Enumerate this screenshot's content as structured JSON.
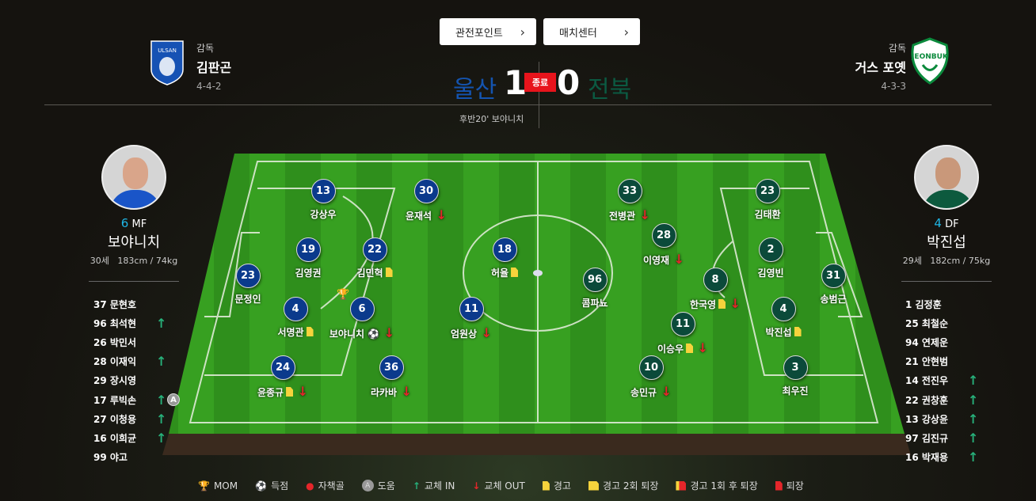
{
  "buttons": {
    "viewing_points": "관전포인트",
    "match_center": "매치센터"
  },
  "home": {
    "name": "울산",
    "score": "1",
    "coach_label": "감독",
    "coach": "김판곤",
    "formation": "4-4-2",
    "color": "#0b3a8c",
    "logo_text": "HD ULSAN"
  },
  "away": {
    "name": "전북",
    "score": "0",
    "coach_label": "감독",
    "coach": "거스 포옛",
    "formation": "4-3-3",
    "color": "#0b4a3a",
    "logo_text": "JEONBUK"
  },
  "match": {
    "status": "종료",
    "event": "후반20' 보야니치"
  },
  "home_profile": {
    "number": "6",
    "position": "MF",
    "name": "보야니치",
    "age": "30세",
    "body": "183cm / 74kg"
  },
  "away_profile": {
    "number": "4",
    "position": "DF",
    "name": "박진섭",
    "age": "29세",
    "body": "182cm / 75kg"
  },
  "home_bench": [
    {
      "label": "37 문현호",
      "in": false
    },
    {
      "label": "96 최석현",
      "in": true
    },
    {
      "label": "26 박민서",
      "in": false
    },
    {
      "label": "28 이재익",
      "in": true
    },
    {
      "label": "29 장시영",
      "in": false
    },
    {
      "label": "17 루빅손",
      "in": true,
      "assist": true
    },
    {
      "label": "27 이청용",
      "in": true
    },
    {
      "label": "16 이희균",
      "in": true
    },
    {
      "label": "99 야고",
      "in": false
    }
  ],
  "away_bench": [
    {
      "label": "1  김정훈",
      "in": false
    },
    {
      "label": "25 최철순",
      "in": false
    },
    {
      "label": "94 연제운",
      "in": false
    },
    {
      "label": "21 안현범",
      "in": false
    },
    {
      "label": "14 전진우",
      "in": true
    },
    {
      "label": "22 권창훈",
      "in": true
    },
    {
      "label": "13 강상윤",
      "in": true
    },
    {
      "label": "97 김진규",
      "in": true
    },
    {
      "label": "16 박재용",
      "in": true
    }
  ],
  "home_players": [
    {
      "num": "13",
      "name": "강상우"
    },
    {
      "num": "30",
      "name": "윤재석",
      "out": true
    },
    {
      "num": "19",
      "name": "김영권"
    },
    {
      "num": "22",
      "name": "김민혁",
      "yellow": true
    },
    {
      "num": "18",
      "name": "허율",
      "yellow": true
    },
    {
      "num": "23",
      "name": "문정인"
    },
    {
      "num": "4",
      "name": "서명관",
      "yellow": true
    },
    {
      "num": "6",
      "name": "보야니치",
      "goal": true,
      "out": true,
      "mom": true
    },
    {
      "num": "11",
      "name": "엄원상",
      "out": true
    },
    {
      "num": "24",
      "name": "윤종규",
      "yellow": true,
      "out": true
    },
    {
      "num": "36",
      "name": "라카바",
      "out": true
    }
  ],
  "away_players": [
    {
      "num": "33",
      "name": "전병관",
      "out": true
    },
    {
      "num": "23",
      "name": "김태환"
    },
    {
      "num": "28",
      "name": "이영재",
      "out": true
    },
    {
      "num": "2",
      "name": "김영빈"
    },
    {
      "num": "96",
      "name": "콤파뇨"
    },
    {
      "num": "31",
      "name": "송범근"
    },
    {
      "num": "8",
      "name": "한국영",
      "yellow": true,
      "out": true
    },
    {
      "num": "4",
      "name": "박진섭",
      "yellow": true
    },
    {
      "num": "11",
      "name": "이승우",
      "yellow": true,
      "out": true
    },
    {
      "num": "10",
      "name": "송민규",
      "out": true
    },
    {
      "num": "3",
      "name": "최우진"
    }
  ],
  "legend": [
    {
      "icon": "trophy-icon",
      "label": "MOM"
    },
    {
      "icon": "ball-icon",
      "label": "득점"
    },
    {
      "icon": "own-goal-icon",
      "label": "자책골"
    },
    {
      "icon": "assist-icon",
      "label": "도움"
    },
    {
      "icon": "sub-in-icon",
      "label": "교체 IN"
    },
    {
      "icon": "sub-out-icon",
      "label": "교체 OUT"
    },
    {
      "icon": "yellow-card-icon",
      "label": "경고"
    },
    {
      "icon": "two-yellow-icon",
      "label": "경고 2회 퇴장"
    },
    {
      "icon": "yellow-red-icon",
      "label": "경고 1회 후 퇴장"
    },
    {
      "icon": "red-card-icon",
      "label": "퇴장"
    }
  ],
  "assist_letter": "A"
}
